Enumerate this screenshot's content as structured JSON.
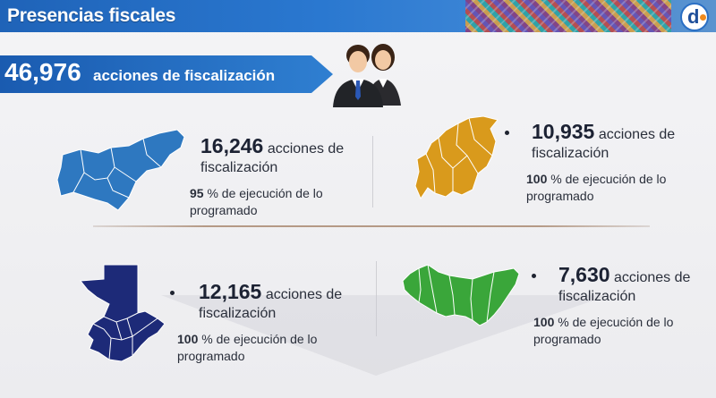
{
  "header": {
    "title": "Presencias fiscales"
  },
  "summary": {
    "total": "46,976",
    "label": "acciones de fiscalización"
  },
  "colors": {
    "blue_map": "#2e78c0",
    "orange_map": "#d99a1c",
    "navy_map": "#1d2a78",
    "green_map": "#3aa63a"
  },
  "regions": [
    {
      "value": "16,246",
      "unit": "acciones de",
      "unit2": "fiscalización",
      "percent": "95",
      "pct_text": "% de ejecución de lo",
      "pct_text2": "programado"
    },
    {
      "value": "10,935",
      "unit": "acciones de",
      "unit2": "fiscalización",
      "percent": "100",
      "pct_text": "% de ejecución de lo",
      "pct_text2": "programado"
    },
    {
      "value": "12,165",
      "unit": "acciones de",
      "unit2": "fiscalización",
      "percent": "100",
      "pct_text": "% de ejecución de lo",
      "pct_text2": "programado"
    },
    {
      "value": "7,630",
      "unit": "acciones de",
      "unit2": "fiscalización",
      "percent": "100",
      "pct_text": "% de ejecución de lo",
      "pct_text2": "programado"
    }
  ],
  "icons": {
    "logo": "d-logo-icon",
    "people": "people-icon"
  }
}
